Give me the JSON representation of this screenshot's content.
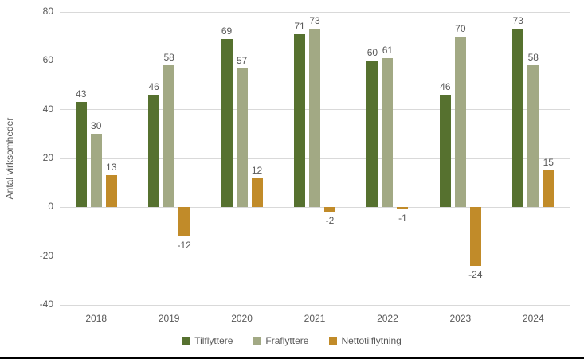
{
  "chart_data": {
    "type": "bar",
    "title": "",
    "xlabel": "",
    "ylabel": "Antal virksomheder",
    "categories": [
      "2018",
      "2019",
      "2020",
      "2021",
      "2022",
      "2023",
      "2024"
    ],
    "series": [
      {
        "name": "Tilflyttere",
        "color": "#56712F",
        "values": [
          43,
          46,
          69,
          71,
          60,
          46,
          73
        ]
      },
      {
        "name": "Fraflyttere",
        "color": "#A2A984",
        "values": [
          30,
          58,
          57,
          73,
          61,
          70,
          58
        ]
      },
      {
        "name": "Nettotilflytning",
        "color": "#C18B29",
        "values": [
          13,
          -12,
          12,
          -2,
          -1,
          -24,
          15
        ]
      }
    ],
    "ylim": [
      -40,
      80
    ],
    "yticks": [
      80,
      60,
      40,
      20,
      0,
      -20,
      -40
    ],
    "grid": true,
    "data_labels": true,
    "legend_position": "bottom"
  },
  "colors": {
    "text": "#595959",
    "gridline": "#D9D9D9",
    "background": "#FFFFFF",
    "bottom_border": "#000000"
  }
}
